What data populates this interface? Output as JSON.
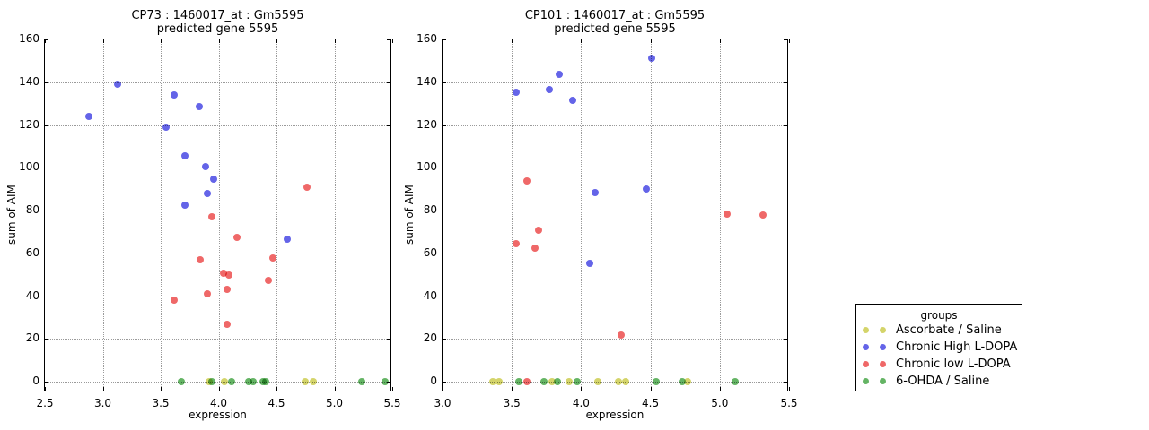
{
  "chart_data": [
    {
      "type": "scatter",
      "title_line1": "CP73 : 1460017_at : Gm5595",
      "title_line2": "predicted gene 5595",
      "xlabel": "expression",
      "ylabel": "sum of AIM",
      "xlim": [
        2.5,
        5.5
      ],
      "ylim": [
        -5,
        160
      ],
      "xtick_labels": [
        "2.5",
        "3.0",
        "3.5",
        "4.0",
        "4.5",
        "5.0",
        "5.5"
      ],
      "ytick_labels": [
        "0",
        "20",
        "40",
        "60",
        "80",
        "100",
        "120",
        "140",
        "160"
      ],
      "grid": true,
      "series": [
        {
          "name": "Ascorbate / Saline",
          "color": "#d4d46a",
          "points": [
            [
              3.92,
              0
            ],
            [
              4.05,
              0
            ],
            [
              4.75,
              0
            ],
            [
              4.82,
              0
            ]
          ]
        },
        {
          "name": "Chronic High L-DOPA",
          "color": "#6464e8",
          "points": [
            [
              2.88,
              124
            ],
            [
              3.13,
              139
            ],
            [
              3.55,
              119
            ],
            [
              3.62,
              134
            ],
            [
              3.71,
              105.5
            ],
            [
              3.71,
              82.5
            ],
            [
              3.83,
              128.5
            ],
            [
              3.89,
              100.5
            ],
            [
              3.9,
              88
            ],
            [
              3.96,
              94.5
            ],
            [
              4.59,
              66.5
            ]
          ]
        },
        {
          "name": "Chronic low L-DOPA",
          "color": "#ef6868",
          "points": [
            [
              3.62,
              38
            ],
            [
              3.84,
              57
            ],
            [
              3.9,
              41
            ],
            [
              3.94,
              77
            ],
            [
              4.04,
              50.5
            ],
            [
              4.07,
              43
            ],
            [
              4.07,
              27
            ],
            [
              4.09,
              50
            ],
            [
              4.16,
              67.5
            ],
            [
              4.43,
              47.5
            ],
            [
              4.47,
              58
            ],
            [
              4.76,
              91
            ]
          ]
        },
        {
          "name": "6-OHDA / Saline",
          "color": "#64b464",
          "points": [
            [
              3.68,
              0
            ],
            [
              3.94,
              0
            ],
            [
              4.11,
              0
            ],
            [
              4.26,
              0
            ],
            [
              4.3,
              0
            ],
            [
              4.38,
              0
            ],
            [
              4.41,
              0
            ],
            [
              5.24,
              0
            ],
            [
              5.44,
              0
            ]
          ]
        }
      ]
    },
    {
      "type": "scatter",
      "title_line1": "CP101 : 1460017_at : Gm5595",
      "title_line2": "predicted gene 5595",
      "xlabel": "expression",
      "ylabel": "sum of AIM",
      "xlim": [
        3.0,
        5.5
      ],
      "ylim": [
        -5,
        160
      ],
      "xtick_labels": [
        "3.0",
        "3.5",
        "4.0",
        "4.5",
        "5.0",
        "5.5"
      ],
      "ytick_labels": [
        "0",
        "20",
        "40",
        "60",
        "80",
        "100",
        "120",
        "140",
        "160"
      ],
      "grid": true,
      "series": [
        {
          "name": "Ascorbate / Saline",
          "color": "#d4d46a",
          "points": [
            [
              3.36,
              0
            ],
            [
              3.41,
              0
            ],
            [
              3.79,
              0
            ],
            [
              3.91,
              0
            ],
            [
              4.12,
              0
            ],
            [
              4.27,
              0
            ],
            [
              4.32,
              0
            ],
            [
              4.77,
              0
            ]
          ]
        },
        {
          "name": "Chronic High L-DOPA",
          "color": "#6464e8",
          "points": [
            [
              3.53,
              135.5
            ],
            [
              3.77,
              136.5
            ],
            [
              3.84,
              143.5
            ],
            [
              3.94,
              131.5
            ],
            [
              4.06,
              55.5
            ],
            [
              4.1,
              88.5
            ],
            [
              4.47,
              90
            ],
            [
              4.51,
              151
            ]
          ]
        },
        {
          "name": "Chronic low L-DOPA",
          "color": "#ef6868",
          "points": [
            [
              3.53,
              64.5
            ],
            [
              3.61,
              94
            ],
            [
              3.61,
              0
            ],
            [
              3.67,
              62.5
            ],
            [
              3.69,
              71
            ],
            [
              4.29,
              22
            ],
            [
              5.05,
              78.5
            ],
            [
              5.31,
              78
            ]
          ]
        },
        {
          "name": "6-OHDA / Saline",
          "color": "#64b464",
          "points": [
            [
              3.55,
              0
            ],
            [
              3.73,
              0
            ],
            [
              3.83,
              0
            ],
            [
              3.97,
              0
            ],
            [
              4.54,
              0
            ],
            [
              4.73,
              0
            ],
            [
              5.11,
              0
            ]
          ]
        }
      ]
    }
  ],
  "legend": {
    "title": "groups",
    "entries": [
      {
        "label": "Ascorbate / Saline",
        "color": "#d4d46a"
      },
      {
        "label": "Chronic High L-DOPA",
        "color": "#6464e8"
      },
      {
        "label": "Chronic low L-DOPA",
        "color": "#ef6868"
      },
      {
        "label": "6-OHDA / Saline",
        "color": "#64b464"
      }
    ]
  }
}
